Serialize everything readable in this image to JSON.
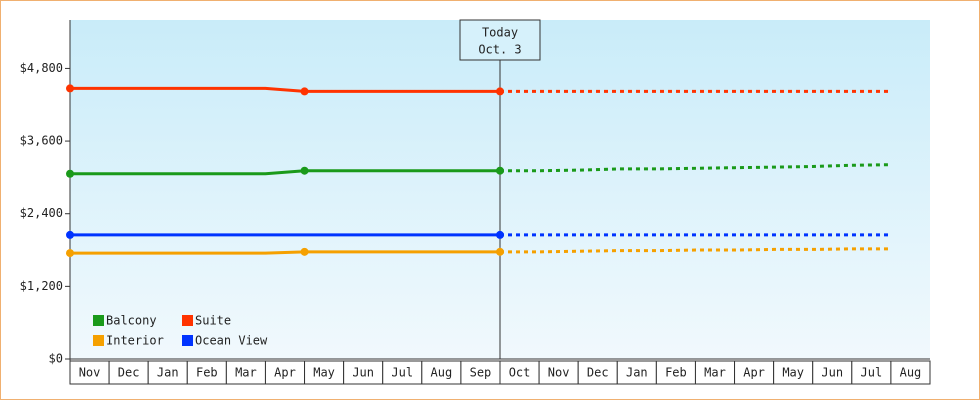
{
  "chart_data": {
    "type": "line",
    "categories": [
      "Nov",
      "Dec",
      "Jan",
      "Feb",
      "Mar",
      "Apr",
      "May",
      "Jun",
      "Jul",
      "Aug",
      "Sep",
      "Oct",
      "Nov",
      "Dec",
      "Jan",
      "Feb",
      "Mar",
      "Apr",
      "May",
      "Jun",
      "Jul",
      "Aug"
    ],
    "series": [
      {
        "name": "Balcony",
        "color": "#1a9a1a",
        "values": [
          3060,
          3060,
          3060,
          3060,
          3060,
          3060,
          3110,
          3110,
          3110,
          3110,
          3110,
          3110,
          3110,
          3120,
          3140,
          3140,
          3150,
          3160,
          3170,
          3180,
          3200,
          3210
        ]
      },
      {
        "name": "Suite",
        "color": "#ff3300",
        "values": [
          4470,
          4470,
          4470,
          4470,
          4470,
          4470,
          4420,
          4420,
          4420,
          4420,
          4420,
          4420,
          4420,
          4420,
          4420,
          4420,
          4420,
          4420,
          4420,
          4420,
          4420,
          4420
        ]
      },
      {
        "name": "Interior",
        "color": "#f5a000",
        "values": [
          1750,
          1750,
          1750,
          1750,
          1750,
          1750,
          1770,
          1770,
          1770,
          1770,
          1770,
          1770,
          1770,
          1780,
          1790,
          1790,
          1800,
          1800,
          1810,
          1810,
          1820,
          1820
        ]
      },
      {
        "name": "Ocean View",
        "color": "#0033ff",
        "values": [
          2050,
          2050,
          2050,
          2050,
          2050,
          2050,
          2050,
          2050,
          2050,
          2050,
          2050,
          2050,
          2050,
          2050,
          2050,
          2050,
          2050,
          2050,
          2050,
          2050,
          2050,
          2050
        ]
      }
    ],
    "annotation": {
      "text": [
        "Today",
        "Oct. 3"
      ],
      "x": 11
    },
    "ylim": [
      0,
      5600
    ],
    "yticks": [
      {
        "value": 0,
        "label": "$0"
      },
      {
        "value": 1200,
        "label": "$1,200"
      },
      {
        "value": 2400,
        "label": "$2,400"
      },
      {
        "value": 3600,
        "label": "$3,600"
      },
      {
        "value": 4800,
        "label": "$4,800"
      }
    ]
  }
}
